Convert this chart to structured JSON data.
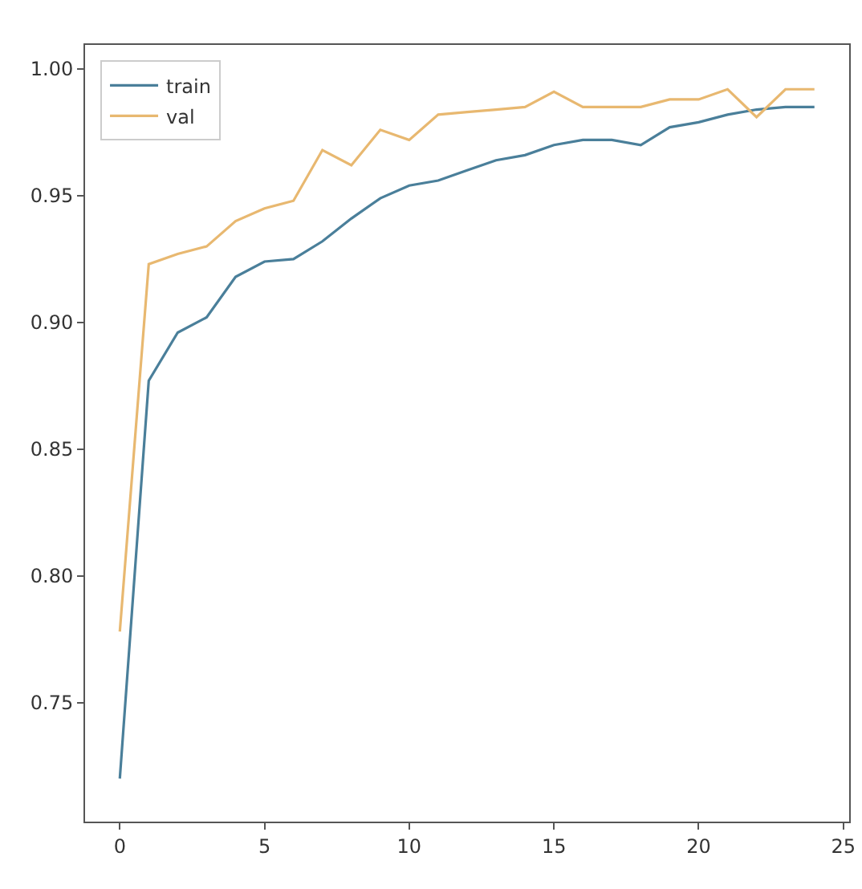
{
  "chart_data": {
    "type": "line",
    "x": [
      0,
      1,
      2,
      3,
      4,
      5,
      6,
      7,
      8,
      9,
      10,
      11,
      12,
      13,
      14,
      15,
      16,
      17,
      18,
      19,
      20,
      21,
      22,
      23,
      24
    ],
    "series": [
      {
        "name": "train",
        "color": "#4a7f9a",
        "values": [
          0.72,
          0.877,
          0.896,
          0.902,
          0.918,
          0.924,
          0.925,
          0.932,
          0.941,
          0.949,
          0.954,
          0.956,
          0.96,
          0.964,
          0.966,
          0.97,
          0.972,
          0.972,
          0.97,
          0.977,
          0.979,
          0.982,
          0.984,
          0.985,
          0.985
        ]
      },
      {
        "name": "val",
        "color": "#e8b870",
        "values": [
          0.778,
          0.923,
          0.927,
          0.93,
          0.94,
          0.945,
          0.948,
          0.968,
          0.962,
          0.976,
          0.972,
          0.982,
          0.983,
          0.984,
          0.985,
          0.991,
          0.985,
          0.985,
          0.985,
          0.988,
          0.988,
          0.992,
          0.981,
          0.992,
          0.992
        ]
      }
    ],
    "xlim": [
      -1.2,
      25.2
    ],
    "xticks": [
      0,
      5,
      10,
      15,
      20,
      25
    ],
    "ylim": [
      0.703,
      1.0095
    ],
    "yticks": [
      {
        "value": 0.75,
        "label": "0.75"
      },
      {
        "value": 0.8,
        "label": "0.80"
      },
      {
        "value": 0.85,
        "label": "0.85"
      },
      {
        "value": 0.9,
        "label": "0.90"
      },
      {
        "value": 0.95,
        "label": "0.95"
      },
      {
        "value": 1,
        "label": "1.00"
      }
    ],
    "grid": false,
    "legend": "top left",
    "marker": "none",
    "line_style": "solid"
  }
}
